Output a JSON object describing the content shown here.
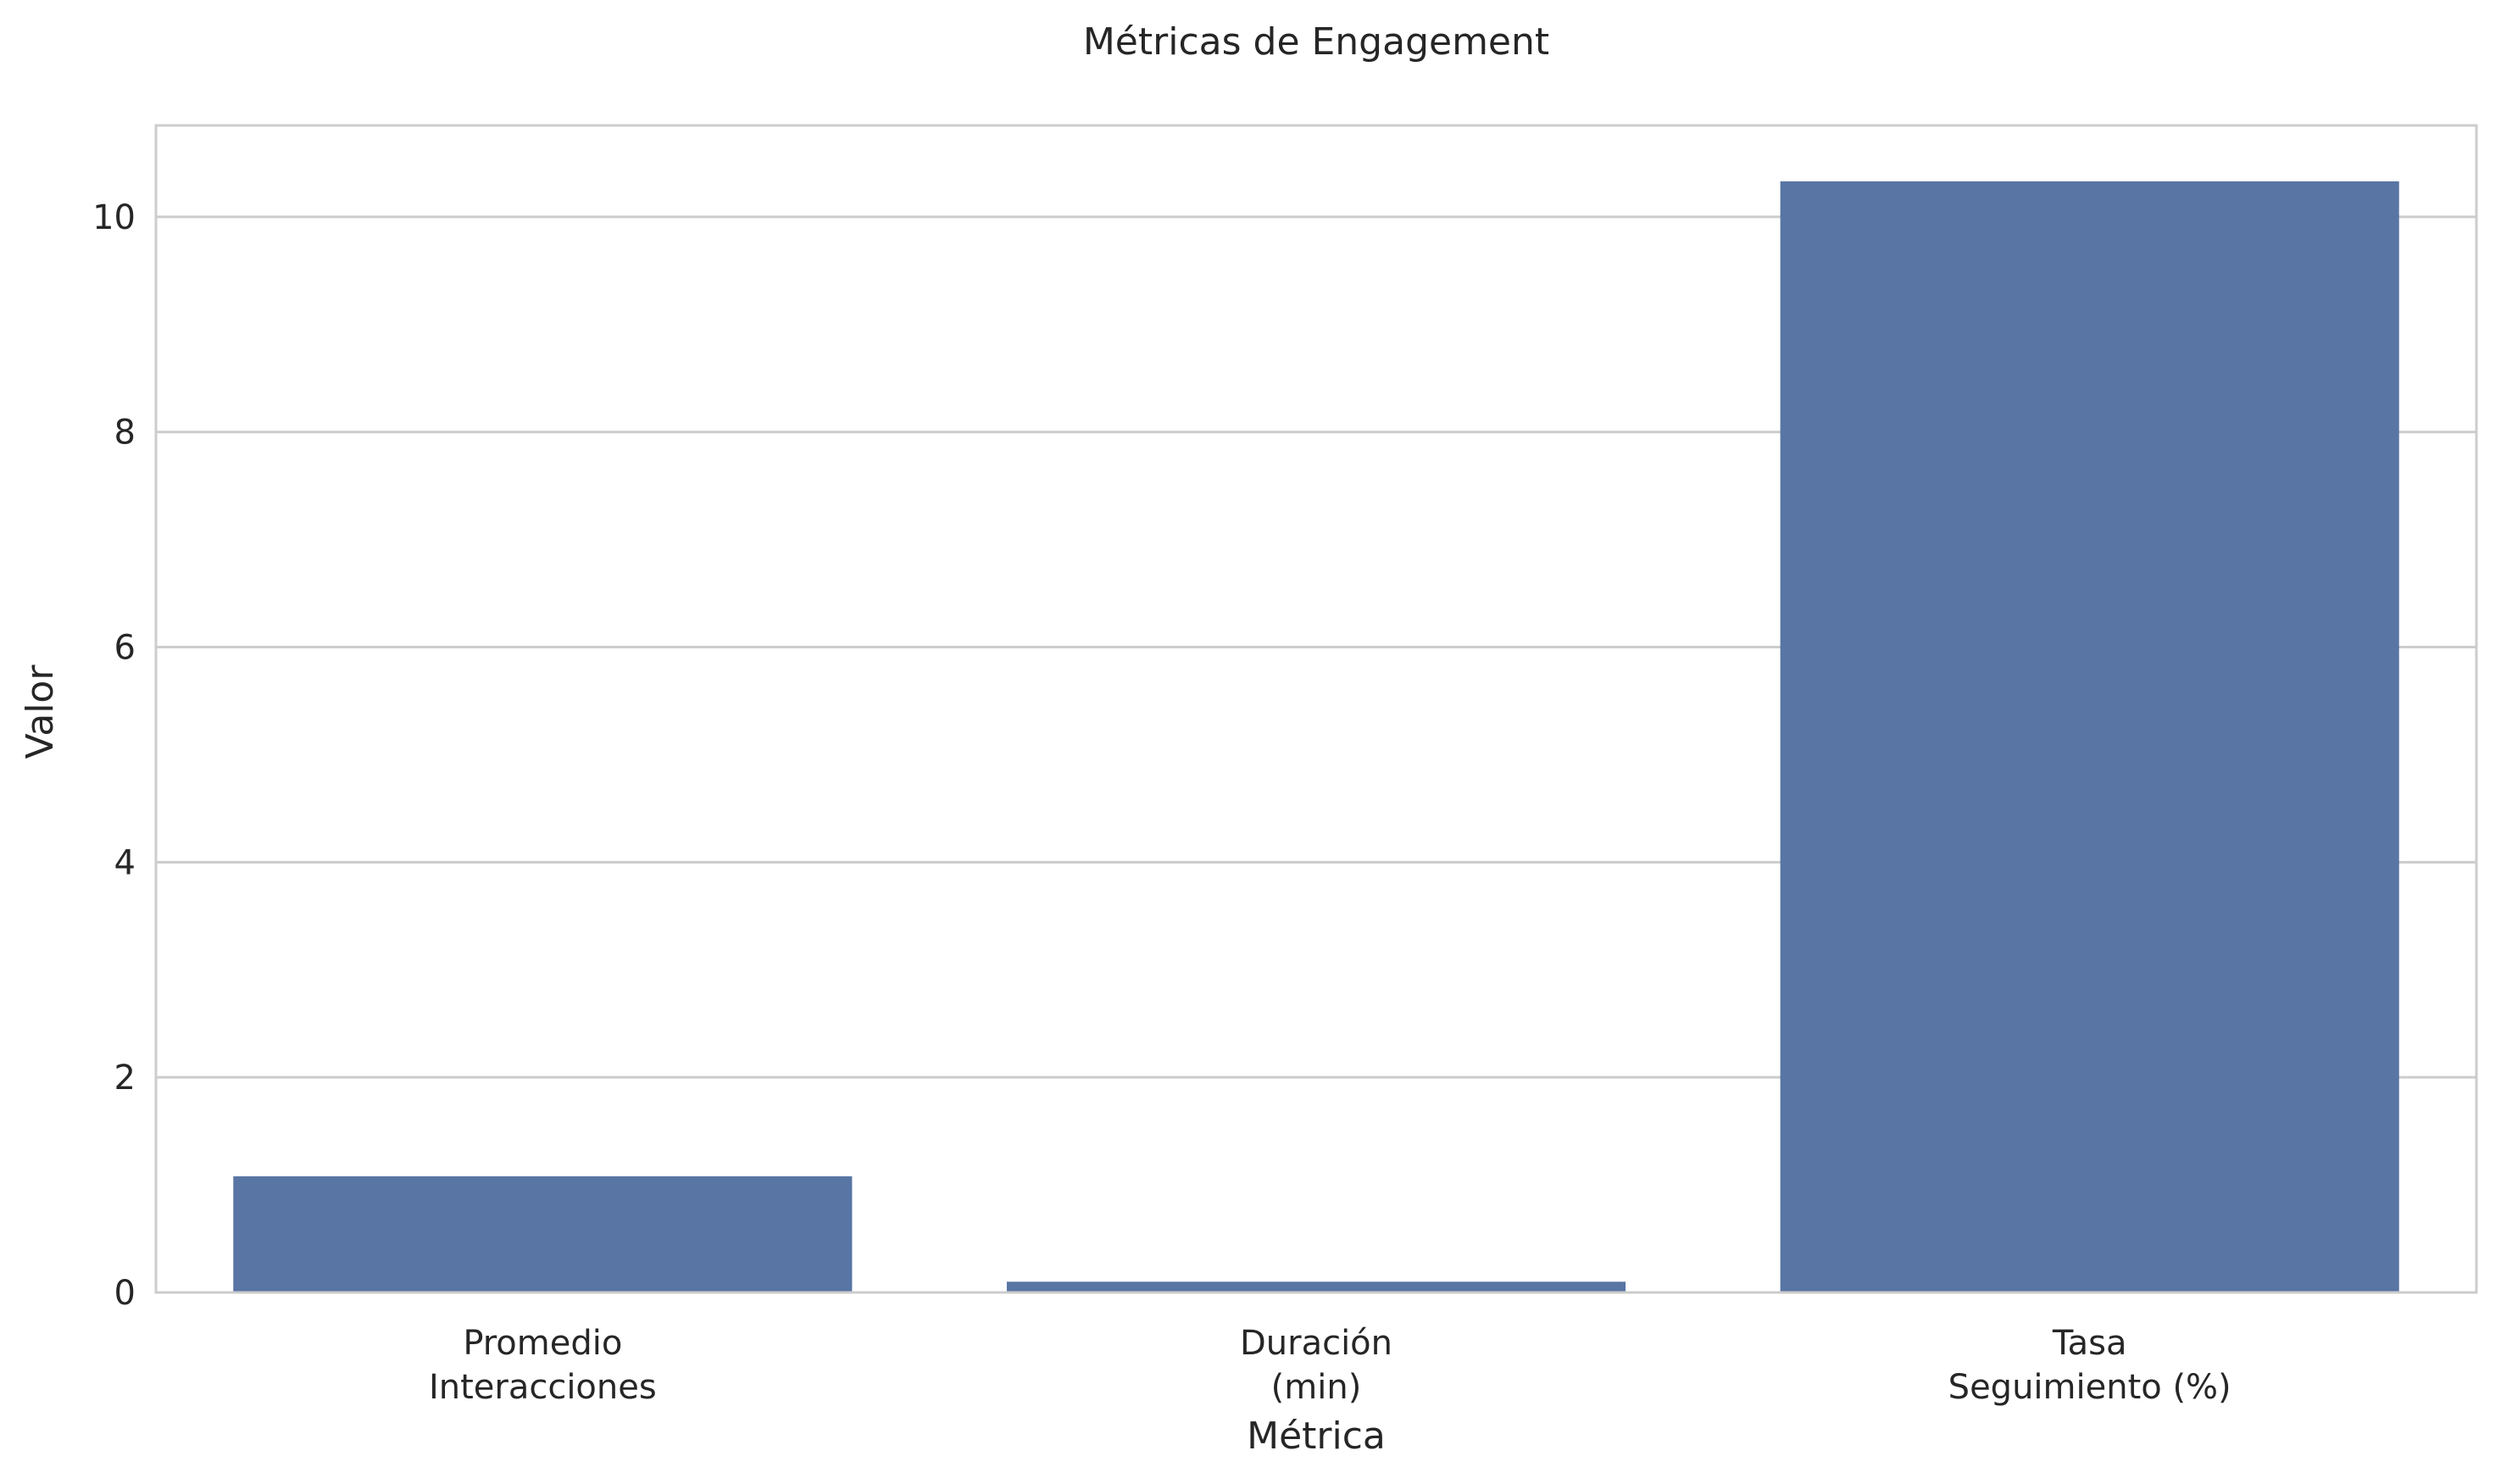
{
  "chart_data": {
    "type": "bar",
    "title": "Métricas de Engagement",
    "xlabel": "Métrica",
    "ylabel": "Valor",
    "categories": [
      [
        "Promedio",
        "Interacciones"
      ],
      [
        "Duración",
        "(min)"
      ],
      [
        "Tasa",
        "Seguimiento (%)"
      ]
    ],
    "values": [
      1.08,
      0.1,
      10.33
    ],
    "yticks": [
      0,
      2,
      4,
      6,
      8,
      10
    ],
    "ylim": [
      0,
      10.85
    ],
    "grid": true,
    "bar_color": "#5875a4",
    "grid_color": "#cccccc",
    "spine_color": "#cccccc",
    "text_color": "#262626"
  }
}
